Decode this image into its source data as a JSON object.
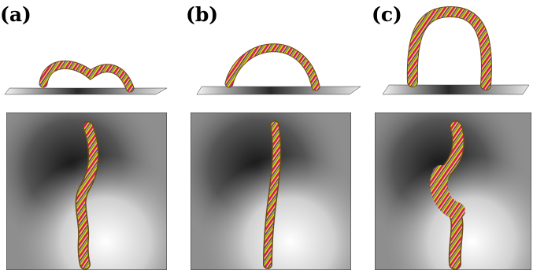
{
  "figure": {
    "panels": [
      {
        "label": "(a)",
        "view": "3d-flux-rope-low-arch"
      },
      {
        "label": "(b)",
        "view": "3d-flux-rope-mid-arch"
      },
      {
        "label": "(c)",
        "view": "3d-flux-rope-high-arch"
      }
    ],
    "colors": {
      "strand_yellow": "#e6d21e",
      "strand_magenta": "#d01a6e",
      "strand_purple": "#7a2fa0",
      "strand_green": "#3a8a2a",
      "magnetogram_light": "#f2f2f2",
      "magnetogram_dark": "#1a1a1a"
    }
  }
}
